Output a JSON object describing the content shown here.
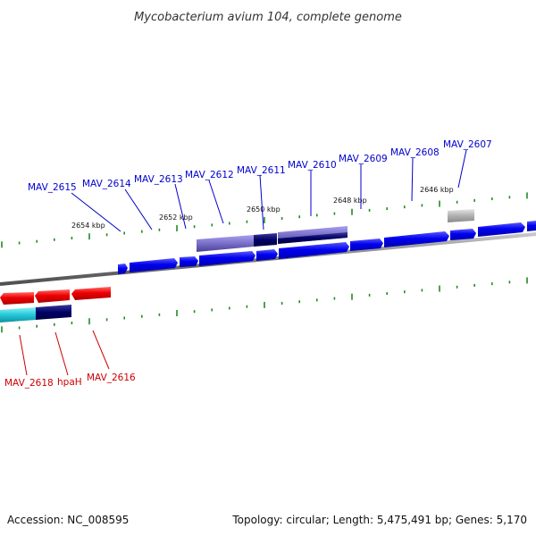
{
  "title": "Mycobacterium avium 104, complete genome",
  "footer": {
    "accession": "Accession: NC_008595",
    "summary": "Topology: circular; Length: 5,475,491 bp; Genes: 5,170"
  },
  "kbp_labels": [
    "2654 kbp",
    "2652 kbp",
    "2650 kbp",
    "2648 kbp",
    "2646 kbp"
  ],
  "top_genes": [
    "MAV_2615",
    "MAV_2614",
    "MAV_2613",
    "MAV_2612",
    "MAV_2611",
    "MAV_2610",
    "MAV_2609",
    "MAV_2608",
    "MAV_2607"
  ],
  "bottom_genes": [
    "MAV_2618",
    "hpaH",
    "MAV_2616"
  ],
  "colors": {
    "forward": "#0000ee",
    "reverse": "#ee0000",
    "backbone": "#808080",
    "tick": "#228b22",
    "top_label": "#0000cc",
    "bottom_label": "#cc0000",
    "domain_dark": "#000066",
    "domain_light": "#7a6fc8",
    "cyan": "#22c8d8",
    "grey_gene": "#b0b0b0"
  }
}
